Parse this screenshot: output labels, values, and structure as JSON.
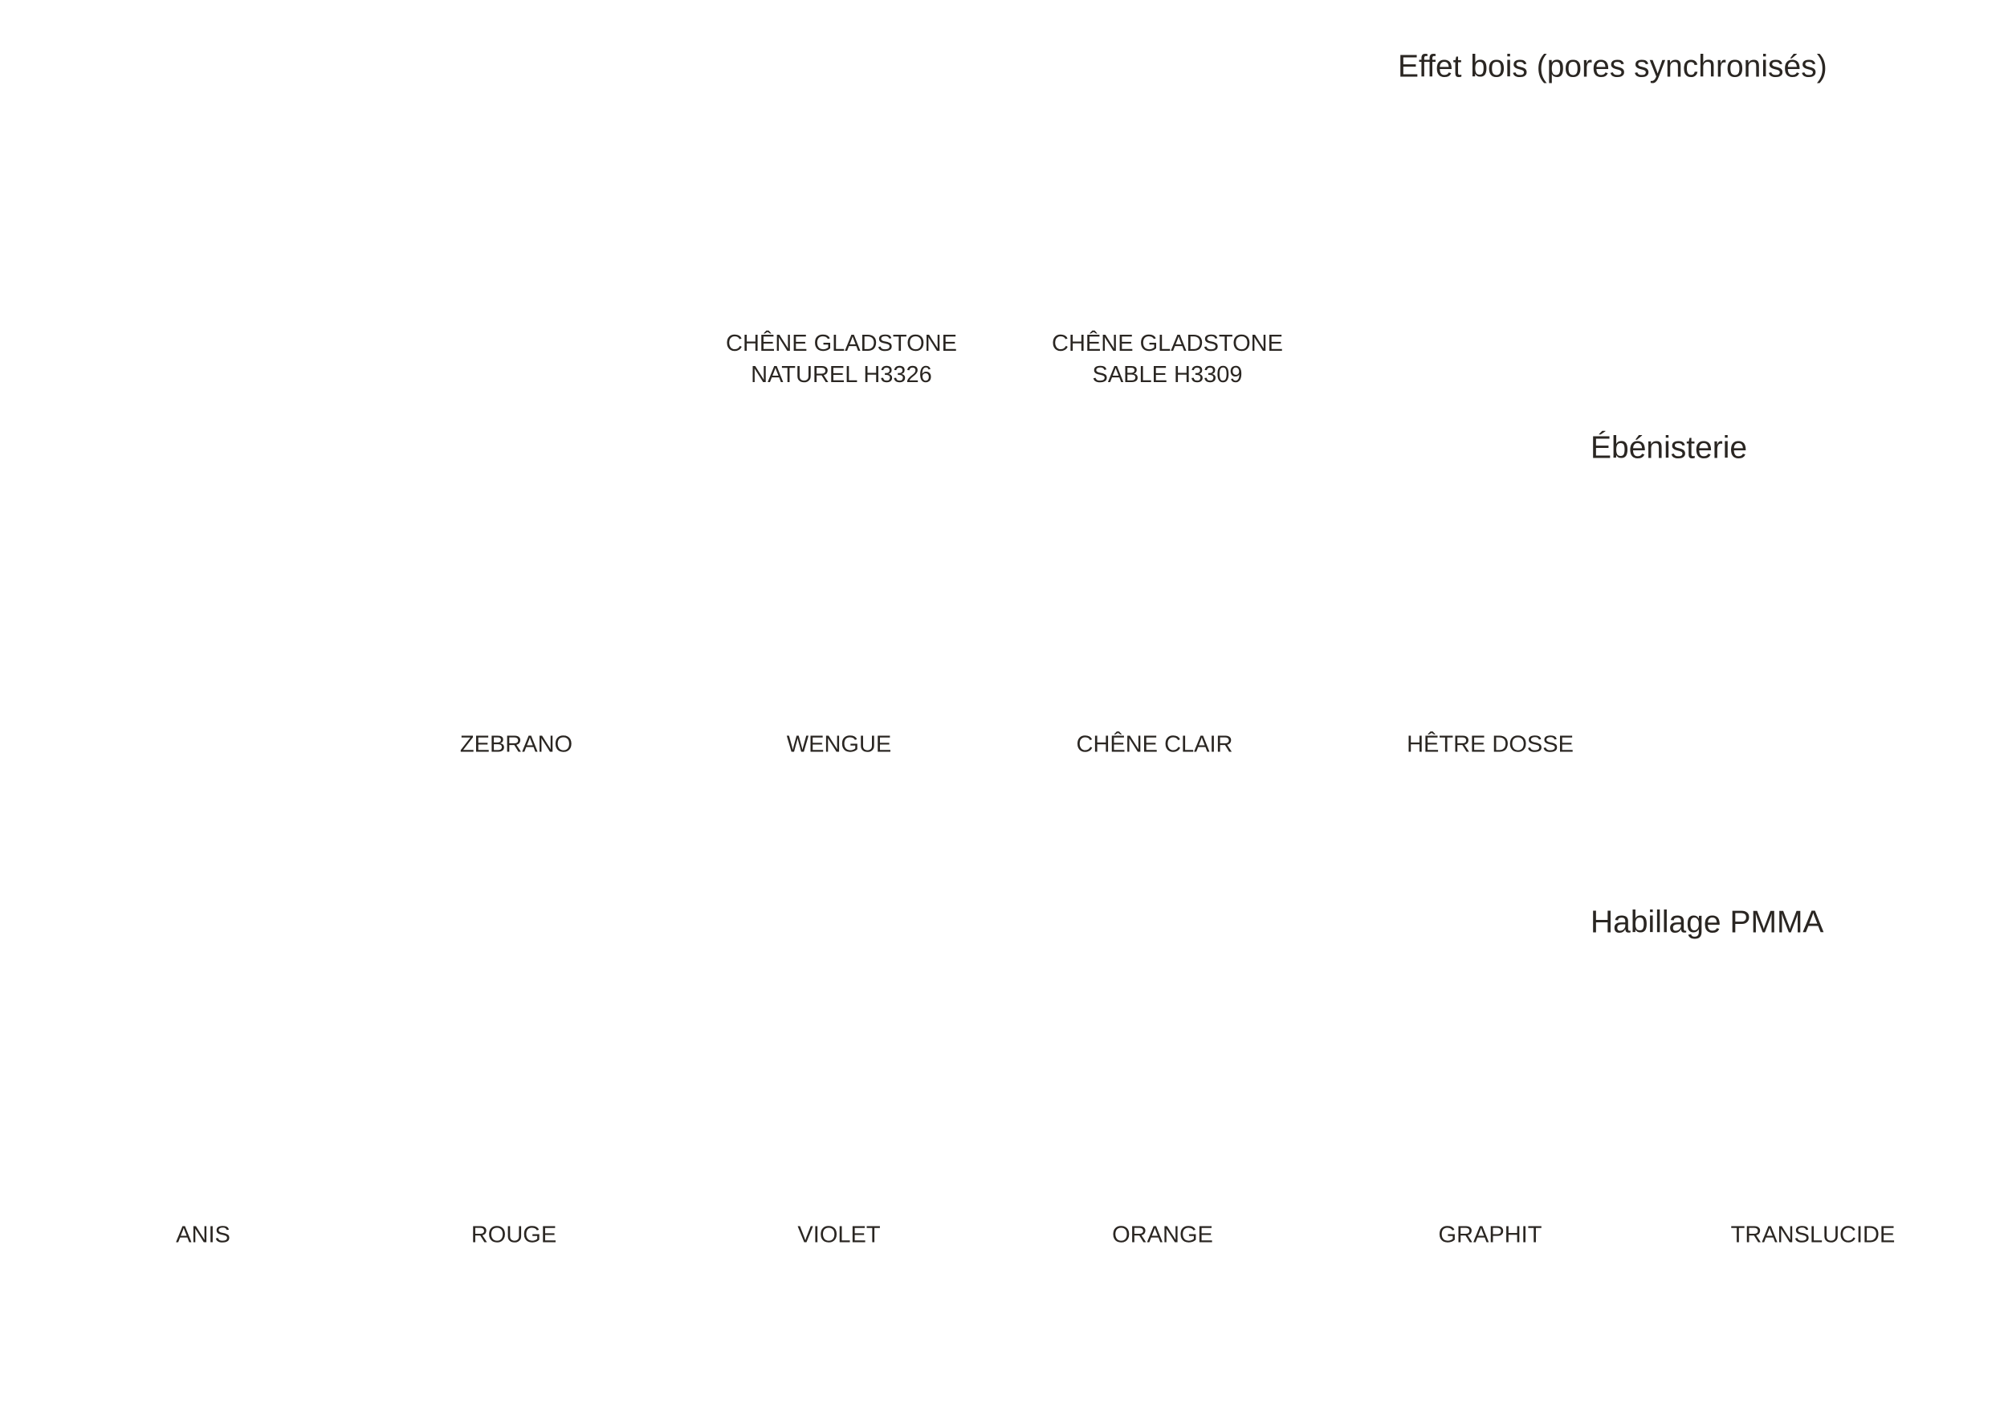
{
  "sections": {
    "wood": {
      "title": "Effet bois (pores synchronisés)",
      "items": [
        [
          "CHÊNE GLADSTONE",
          "NATUREL H3326"
        ],
        [
          "CHÊNE GLADSTONE",
          "SABLE H3309"
        ]
      ]
    },
    "cabinetry": {
      "title": "Ébénisterie",
      "items": [
        "ZEBRANO",
        "WENGUE",
        "CHÊNE CLAIR",
        "HÊTRE DOSSE"
      ]
    },
    "pmma": {
      "title": "Habillage PMMA",
      "items": [
        "ANIS",
        "ROUGE",
        "VIOLET",
        "ORANGE",
        "GRAPHIT",
        "TRANSLUCIDE"
      ]
    }
  }
}
